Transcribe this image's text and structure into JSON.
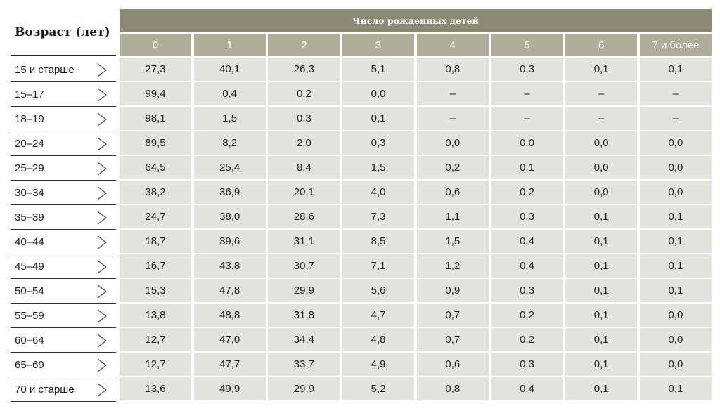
{
  "chart_data": {
    "type": "table",
    "row_header": "Возраст (лет)",
    "column_group_title": "Число рожденных детей",
    "columns": [
      "0",
      "1",
      "2",
      "3",
      "4",
      "5",
      "6",
      "7 и более"
    ],
    "rows": [
      {
        "label": "15 и старше",
        "values": [
          "27,3",
          "40,1",
          "26,3",
          "5,1",
          "0,8",
          "0,3",
          "0,1",
          "0,1"
        ]
      },
      {
        "label": "15–17",
        "values": [
          "99,4",
          "0,4",
          "0,2",
          "0,0",
          "–",
          "–",
          "–",
          "–"
        ]
      },
      {
        "label": "18–19",
        "values": [
          "98,1",
          "1,5",
          "0,3",
          "0,1",
          "–",
          "–",
          "–",
          "–"
        ]
      },
      {
        "label": "20–24",
        "values": [
          "89,5",
          "8,2",
          "2,0",
          "0,3",
          "0,0",
          "0,0",
          "0,0",
          "0,0"
        ]
      },
      {
        "label": "25–29",
        "values": [
          "64,5",
          "25,4",
          "8,4",
          "1,5",
          "0,2",
          "0,1",
          "0,0",
          "0,0"
        ]
      },
      {
        "label": "30–34",
        "values": [
          "38,2",
          "36,9",
          "20,1",
          "4,0",
          "0,6",
          "0,2",
          "0,0",
          "0,0"
        ]
      },
      {
        "label": "35–39",
        "values": [
          "24,7",
          "38,0",
          "28,6",
          "7,3",
          "1,1",
          "0,3",
          "0,1",
          "0,1"
        ]
      },
      {
        "label": "40–44",
        "values": [
          "18,7",
          "39,6",
          "31,1",
          "8,5",
          "1,5",
          "0,4",
          "0,1",
          "0,1"
        ]
      },
      {
        "label": "45–49",
        "values": [
          "16,7",
          "43,8",
          "30,7",
          "7,1",
          "1,2",
          "0,4",
          "0,1",
          "0,1"
        ]
      },
      {
        "label": "50–54",
        "values": [
          "15,3",
          "47,8",
          "29,9",
          "5,6",
          "0,9",
          "0,3",
          "0,1",
          "0,1"
        ]
      },
      {
        "label": "55–59",
        "values": [
          "13,8",
          "48,8",
          "31,8",
          "4,7",
          "0,7",
          "0,2",
          "0,1",
          "0,0"
        ]
      },
      {
        "label": "60–64",
        "values": [
          "12,7",
          "47,0",
          "34,4",
          "4,8",
          "0,7",
          "0,2",
          "0,1",
          "0,0"
        ]
      },
      {
        "label": "65–69",
        "values": [
          "12,7",
          "47,7",
          "33,7",
          "4,9",
          "0,6",
          "0,3",
          "0,1",
          "0,0"
        ]
      },
      {
        "label": "70 и старше",
        "values": [
          "13,6",
          "49,9",
          "29,9",
          "5,2",
          "0,8",
          "0,4",
          "0,1",
          "0,1"
        ]
      }
    ],
    "colors": {
      "group_header_bg": "#8b8b75",
      "column_header_bg": "#aeae99",
      "cell_bg": "#e3e3dd",
      "header_text": "#ffffff"
    },
    "row_icon": "chevron-right-icon"
  }
}
